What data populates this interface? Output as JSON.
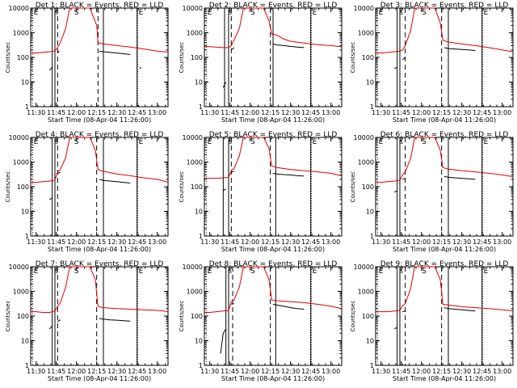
{
  "chart_data": {
    "type": "line",
    "yscale": "log",
    "ylim": [
      1,
      10000
    ],
    "ytick_labels": [
      "1",
      "10",
      "100",
      "1000",
      "10000"
    ],
    "xlim": [
      "11:26",
      "13:08"
    ],
    "xtick_labels": [
      "11:30",
      "11:45",
      "12:00",
      "12:15",
      "12:30",
      "12:45",
      "13:00"
    ],
    "xlabel": "Start Time (08-Apr-04 11:26:00)",
    "ylabel": "Counts/sec",
    "colors": {
      "events": "#000000",
      "lld": "#e00000",
      "axes": "#000000"
    },
    "panels": [
      {
        "title": "Det  1: BLACK = Events, RED = LLD",
        "solid_lines": [
          "11:42",
          "11:44",
          "12:20",
          "12:45"
        ],
        "dashed_lines": [
          "11:46",
          "12:16"
        ],
        "markers": {
          "S": "12:00",
          "E": [
            "11:27",
            "12:45"
          ],
          "S_small": "11:45"
        },
        "events": {
          "x": [
            "11:28",
            "11:30",
            "11:35",
            "11:40",
            "11:42",
            "11:44",
            "11:46",
            "11:47",
            "11:50",
            "12:16",
            "12:17",
            "12:20",
            "12:25",
            "12:30",
            "12:35",
            "12:40",
            "12:45",
            "12:47",
            "12:48",
            "12:50"
          ],
          "y": [
            null,
            null,
            null,
            30,
            40,
            null,
            150,
            180,
            null,
            null,
            180,
            170,
            160,
            150,
            140,
            130,
            null,
            40,
            35,
            null
          ]
        },
        "lld": {
          "x": [
            "11:26",
            "11:30",
            "11:35",
            "11:40",
            "11:44",
            "11:46",
            "11:48",
            "11:52",
            "11:55",
            "12:10",
            "12:15",
            "12:16",
            "12:20",
            "12:30",
            "12:40",
            "12:50",
            "13:00",
            "13:05",
            "13:08"
          ],
          "y": [
            150,
            150,
            160,
            170,
            180,
            250,
            400,
            1500,
            10000,
            10000,
            2000,
            400,
            350,
            300,
            260,
            220,
            180,
            170,
            165
          ]
        }
      },
      {
        "title": "Det  2: BLACK = Events, RED = LLD",
        "solid_lines": [
          "11:41",
          "11:44",
          "12:17",
          "12:45"
        ],
        "dashed_lines": [
          "11:46",
          "12:15"
        ],
        "markers": {
          "S": "12:02",
          "E": [
            "11:27",
            "12:45"
          ],
          "S_small": "11:45"
        },
        "events": {
          "x": [
            "11:40",
            "11:42",
            "11:44",
            "11:46",
            "11:48",
            "12:16",
            "12:17",
            "12:20",
            "12:25",
            "12:30",
            "12:35",
            "12:40",
            "12:45"
          ],
          "y": [
            6,
            10,
            null,
            200,
            250,
            null,
            350,
            320,
            300,
            280,
            260,
            250,
            null
          ]
        },
        "lld": {
          "x": [
            "11:26",
            "11:30",
            "11:35",
            "11:40",
            "11:44",
            "11:46",
            "11:48",
            "11:52",
            "11:55",
            "12:10",
            "12:14",
            "12:16",
            "12:20",
            "12:25",
            "12:30",
            "12:40",
            "12:50",
            "13:00",
            "13:05",
            "13:08"
          ],
          "y": [
            270,
            270,
            260,
            250,
            250,
            300,
            500,
            1500,
            10000,
            10000,
            3000,
            900,
            800,
            550,
            450,
            380,
            330,
            300,
            280,
            270
          ]
        }
      },
      {
        "title": "Det  3: BLACK = Events, RED = LLD",
        "solid_lines": [
          "11:42",
          "11:44",
          "12:20",
          "12:45"
        ],
        "dashed_lines": [
          "11:48",
          "12:15"
        ],
        "markers": {
          "S": "12:02",
          "E": [
            "11:27",
            "12:45"
          ],
          "S_small": "11:45"
        },
        "events": {
          "x": [
            "11:40",
            "11:42",
            "11:44",
            "11:46",
            "11:48",
            "12:16",
            "12:17",
            "12:20",
            "12:25",
            "12:30",
            "12:35",
            "12:40",
            "12:45",
            "12:47",
            "12:50"
          ],
          "y": [
            35,
            40,
            null,
            80,
            100,
            null,
            250,
            230,
            220,
            210,
            200,
            190,
            null,
            40,
            null
          ]
        },
        "lld": {
          "x": [
            "11:26",
            "11:30",
            "11:35",
            "11:40",
            "11:44",
            "11:46",
            "11:48",
            "11:52",
            "11:55",
            "12:10",
            "12:14",
            "12:16",
            "12:20",
            "12:30",
            "12:40",
            "12:50",
            "13:00",
            "13:05",
            "13:08"
          ],
          "y": [
            150,
            150,
            160,
            170,
            180,
            200,
            300,
            1200,
            10000,
            10000,
            2500,
            500,
            420,
            350,
            300,
            250,
            200,
            180,
            170
          ]
        }
      },
      {
        "title": "Det  4: BLACK = Events, RED = LLD",
        "solid_lines": [
          "11:42",
          "11:44",
          "12:20",
          "12:45"
        ],
        "dashed_lines": [
          "11:46",
          "12:15"
        ],
        "markers": {
          "S": "12:00",
          "E": [
            "11:27",
            "12:45"
          ],
          "S_small": "11:45"
        },
        "events": {
          "x": [
            "11:40",
            "11:42",
            "11:44",
            "11:46",
            "11:48",
            "12:16",
            "12:17",
            "12:20",
            "12:25",
            "12:30",
            "12:35",
            "12:40",
            "12:45",
            "12:47",
            "12:50"
          ],
          "y": [
            30,
            35,
            null,
            350,
            380,
            null,
            200,
            180,
            170,
            160,
            150,
            140,
            null,
            45,
            null
          ]
        },
        "lld": {
          "x": [
            "11:26",
            "11:30",
            "11:35",
            "11:40",
            "11:44",
            "11:46",
            "11:48",
            "11:52",
            "11:55",
            "12:10",
            "12:14",
            "12:16",
            "12:20",
            "12:30",
            "12:40",
            "12:50",
            "13:00",
            "13:05",
            "13:08"
          ],
          "y": [
            150,
            150,
            160,
            170,
            180,
            400,
            500,
            1500,
            10000,
            10000,
            3000,
            500,
            420,
            330,
            280,
            230,
            200,
            170,
            150
          ]
        }
      },
      {
        "title": "Det  5: BLACK = Events, RED = LLD",
        "solid_lines": [
          "11:40",
          "11:44",
          "12:19",
          "12:45"
        ],
        "dashed_lines": [
          "11:46",
          "12:15"
        ],
        "markers": {
          "S": "12:02",
          "E": [
            "11:27",
            "12:45"
          ],
          "S_small": "11:45"
        },
        "events": {
          "x": [
            "11:40",
            "11:42",
            "11:44",
            "11:46",
            "11:48",
            "12:16",
            "12:17",
            "12:20",
            "12:25",
            "12:30",
            "12:35",
            "12:40",
            "12:45"
          ],
          "y": [
            70,
            80,
            null,
            400,
            420,
            null,
            350,
            330,
            310,
            300,
            280,
            270,
            null
          ]
        },
        "lld": {
          "x": [
            "11:26",
            "11:30",
            "11:35",
            "11:40",
            "11:44",
            "11:46",
            "11:48",
            "11:52",
            "11:55",
            "12:10",
            "12:14",
            "12:16",
            "12:20",
            "12:30",
            "12:40",
            "12:50",
            "13:00",
            "13:05",
            "13:08"
          ],
          "y": [
            220,
            220,
            220,
            230,
            240,
            450,
            550,
            1800,
            10000,
            10000,
            3500,
            700,
            600,
            500,
            450,
            400,
            350,
            300,
            280
          ]
        }
      },
      {
        "title": "Det  6: BLACK = Events, RED = LLD",
        "solid_lines": [
          "11:42",
          "11:44",
          "12:20",
          "12:45"
        ],
        "dashed_lines": [
          "11:48",
          "12:15"
        ],
        "markers": {
          "S": "12:02",
          "E": [
            "11:27",
            "12:45"
          ],
          "S_small": "11:45"
        },
        "events": {
          "x": [
            "11:40",
            "11:42",
            "11:44",
            "11:46",
            "11:48",
            "12:16",
            "12:17",
            "12:20",
            "12:25",
            "12:30",
            "12:35",
            "12:40",
            "12:45",
            "12:47",
            "12:50"
          ],
          "y": [
            60,
            70,
            null,
            200,
            220,
            null,
            260,
            240,
            230,
            220,
            210,
            200,
            null,
            45,
            null
          ]
        },
        "lld": {
          "x": [
            "11:26",
            "11:30",
            "11:35",
            "11:40",
            "11:44",
            "11:46",
            "11:48",
            "11:52",
            "11:55",
            "12:10",
            "12:14",
            "12:16",
            "12:20",
            "12:30",
            "12:40",
            "12:50",
            "13:00",
            "13:05",
            "13:08"
          ],
          "y": [
            150,
            150,
            160,
            170,
            180,
            300,
            400,
            1400,
            10000,
            10000,
            3000,
            600,
            520,
            450,
            400,
            350,
            300,
            270,
            250
          ]
        }
      },
      {
        "title": "Det  7: BLACK = Events, RED = LLD",
        "solid_lines": [
          "11:42",
          "11:44",
          "12:20",
          "12:45"
        ],
        "dashed_lines": [
          "11:46",
          "12:15"
        ],
        "markers": {
          "S": "12:00",
          "E": [
            "11:27",
            "12:45"
          ],
          "S_small": "11:45"
        },
        "events": {
          "x": [
            "11:40",
            "11:42",
            "11:44",
            "11:46",
            "11:48",
            "12:16",
            "12:17",
            "12:20",
            "12:25",
            "12:30",
            "12:35",
            "12:40",
            "12:45",
            "12:47",
            "12:50"
          ],
          "y": [
            30,
            40,
            null,
            60,
            70,
            null,
            80,
            75,
            70,
            68,
            65,
            62,
            null,
            45,
            null
          ]
        },
        "lld": {
          "x": [
            "11:26",
            "11:30",
            "11:35",
            "11:40",
            "11:44",
            "11:46",
            "11:48",
            "11:52",
            "11:55",
            "12:10",
            "12:14",
            "12:16",
            "12:20",
            "12:30",
            "12:40",
            "12:50",
            "13:00",
            "13:05",
            "13:08"
          ],
          "y": [
            150,
            150,
            140,
            140,
            160,
            250,
            350,
            1500,
            10000,
            10000,
            3000,
            250,
            220,
            200,
            190,
            180,
            170,
            160,
            150
          ]
        }
      },
      {
        "title": "Det  8: BLACK = Events, RED = LLD",
        "solid_lines": [
          "11:42",
          "11:44",
          "12:19",
          "12:45"
        ],
        "dashed_lines": [
          "11:47",
          "12:15"
        ],
        "markers": {
          "S": "12:02",
          "E": [
            "11:27",
            "12:45"
          ],
          "S_small": "11:45"
        },
        "events": {
          "x": [
            "11:38",
            "11:40",
            "11:42",
            "11:44",
            "11:46",
            "11:48",
            "12:16",
            "12:17",
            "12:20",
            "12:25",
            "12:30",
            "12:35",
            "12:40",
            "12:45",
            "12:47",
            "12:50"
          ],
          "y": [
            3,
            20,
            30,
            null,
            300,
            320,
            null,
            300,
            280,
            250,
            220,
            200,
            190,
            null,
            60,
            null
          ]
        },
        "lld": {
          "x": [
            "11:26",
            "11:30",
            "11:35",
            "11:40",
            "11:44",
            "11:46",
            "11:48",
            "11:52",
            "11:55",
            "12:10",
            "12:14",
            "12:16",
            "12:20",
            "12:30",
            "12:40",
            "12:50",
            "13:00",
            "13:05",
            "13:08"
          ],
          "y": [
            140,
            140,
            150,
            160,
            170,
            380,
            450,
            1500,
            10000,
            10000,
            3000,
            450,
            420,
            380,
            350,
            300,
            250,
            220,
            200
          ]
        }
      },
      {
        "title": "Det  9: BLACK = Events, RED = LLD",
        "solid_lines": [
          "11:42",
          "11:44",
          "12:20",
          "12:45"
        ],
        "dashed_lines": [
          "11:48",
          "12:15"
        ],
        "markers": {
          "S": "12:02",
          "E": [
            "11:27",
            "12:45"
          ],
          "S_small": "11:45"
        },
        "events": {
          "x": [
            "11:40",
            "11:42",
            "11:44",
            "11:46",
            "11:48",
            "12:16",
            "12:17",
            "12:20",
            "12:25",
            "12:30",
            "12:35",
            "12:40",
            "12:45",
            "12:47",
            "12:50"
          ],
          "y": [
            30,
            35,
            null,
            150,
            160,
            null,
            220,
            200,
            190,
            180,
            170,
            160,
            null,
            45,
            null
          ]
        },
        "lld": {
          "x": [
            "11:26",
            "11:30",
            "11:35",
            "11:40",
            "11:44",
            "11:46",
            "11:48",
            "11:52",
            "11:55",
            "12:10",
            "12:14",
            "12:16",
            "12:20",
            "12:30",
            "12:40",
            "12:50",
            "13:00",
            "13:05",
            "13:08"
          ],
          "y": [
            150,
            150,
            150,
            160,
            170,
            260,
            320,
            1300,
            10000,
            10000,
            3000,
            300,
            280,
            240,
            220,
            200,
            180,
            170,
            160
          ]
        }
      }
    ]
  }
}
